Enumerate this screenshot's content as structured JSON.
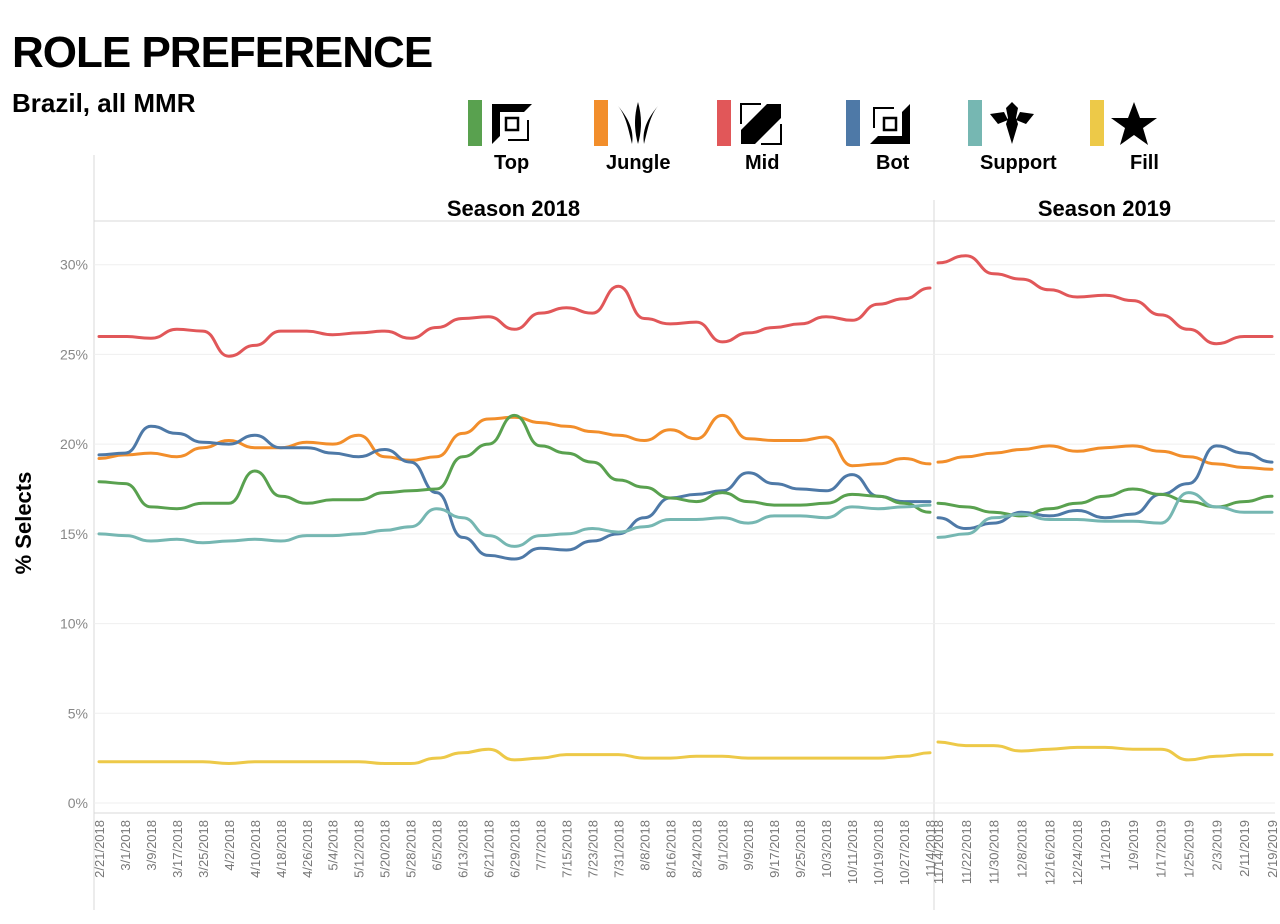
{
  "title": "ROLE PREFERENCE",
  "subtitle": "Brazil, all MMR",
  "legend": [
    {
      "label": "Top",
      "color": "#59a14f",
      "icon": "top-lane-icon"
    },
    {
      "label": "Jungle",
      "color": "#f28e2b",
      "icon": "jungle-icon"
    },
    {
      "label": "Mid",
      "color": "#e15759",
      "icon": "mid-lane-icon"
    },
    {
      "label": "Bot",
      "color": "#4e79a7",
      "icon": "bot-lane-icon"
    },
    {
      "label": "Support",
      "color": "#76b7b2",
      "icon": "support-icon"
    },
    {
      "label": "Fill",
      "color": "#edc948",
      "icon": "star-icon"
    }
  ],
  "chart_data": {
    "type": "line",
    "ylabel": "% Selects",
    "ylim": [
      0,
      32
    ],
    "yticks": [
      "0%",
      "5%",
      "10%",
      "15%",
      "20%",
      "25%",
      "30%"
    ],
    "grid": true,
    "panels": [
      {
        "name": "Season 2018",
        "x": [
          "2/21/2018",
          "3/1/2018",
          "3/9/2018",
          "3/17/2018",
          "3/25/2018",
          "4/2/2018",
          "4/10/2018",
          "4/18/2018",
          "4/26/2018",
          "5/4/2018",
          "5/12/2018",
          "5/20/2018",
          "5/28/2018",
          "6/5/2018",
          "6/13/2018",
          "6/21/2018",
          "6/29/2018",
          "7/7/2018",
          "7/15/2018",
          "7/23/2018",
          "7/31/2018",
          "8/8/2018",
          "8/16/2018",
          "8/24/2018",
          "9/1/2018",
          "9/9/2018",
          "9/17/2018",
          "9/25/2018",
          "10/3/2018",
          "10/11/2018",
          "10/19/2018",
          "10/27/2018",
          "11/4/2018"
        ],
        "series": [
          {
            "name": "Mid",
            "values": [
              26.0,
              26.0,
              25.9,
              26.4,
              26.3,
              24.9,
              25.5,
              26.3,
              26.3,
              26.1,
              26.2,
              26.3,
              25.9,
              26.5,
              27.0,
              27.1,
              26.4,
              27.3,
              27.6,
              27.3,
              28.8,
              27.0,
              26.7,
              26.8,
              25.7,
              26.2,
              26.5,
              26.7,
              27.1,
              26.9,
              27.8,
              28.1,
              28.7
            ]
          },
          {
            "name": "Jungle",
            "values": [
              19.2,
              19.4,
              19.5,
              19.3,
              19.8,
              20.2,
              19.8,
              19.8,
              20.1,
              20.0,
              20.5,
              19.3,
              19.1,
              19.3,
              20.6,
              21.4,
              21.5,
              21.2,
              21.0,
              20.7,
              20.5,
              20.2,
              20.8,
              20.3,
              21.6,
              20.3,
              20.2,
              20.2,
              20.4,
              18.8,
              18.9,
              19.2,
              18.9
            ]
          },
          {
            "name": "Bot",
            "values": [
              19.4,
              19.5,
              21.0,
              20.6,
              20.1,
              20.0,
              20.5,
              19.8,
              19.8,
              19.5,
              19.3,
              19.7,
              19.0,
              17.3,
              14.8,
              13.8,
              13.6,
              14.2,
              14.1,
              14.6,
              15.0,
              15.9,
              17.0,
              17.2,
              17.4,
              18.4,
              17.8,
              17.5,
              17.4,
              18.3,
              17.1,
              16.8,
              16.8
            ]
          },
          {
            "name": "Top",
            "values": [
              17.9,
              17.8,
              16.5,
              16.4,
              16.7,
              16.7,
              18.5,
              17.1,
              16.7,
              16.9,
              16.9,
              17.3,
              17.4,
              17.5,
              19.3,
              20.0,
              21.6,
              19.9,
              19.5,
              19.0,
              18.0,
              17.6,
              17.0,
              16.8,
              17.3,
              16.8,
              16.6,
              16.6,
              16.7,
              17.2,
              17.1,
              16.7,
              16.2
            ]
          },
          {
            "name": "Support",
            "values": [
              15.0,
              14.9,
              14.6,
              14.7,
              14.5,
              14.6,
              14.7,
              14.6,
              14.9,
              14.9,
              15.0,
              15.2,
              15.4,
              16.4,
              15.9,
              14.9,
              14.3,
              14.9,
              15.0,
              15.3,
              15.1,
              15.4,
              15.8,
              15.8,
              15.9,
              15.6,
              16.0,
              16.0,
              15.9,
              16.5,
              16.4,
              16.5,
              16.6
            ]
          },
          {
            "name": "Fill",
            "values": [
              2.3,
              2.3,
              2.3,
              2.3,
              2.3,
              2.2,
              2.3,
              2.3,
              2.3,
              2.3,
              2.3,
              2.2,
              2.2,
              2.5,
              2.8,
              3.0,
              2.4,
              2.5,
              2.7,
              2.7,
              2.7,
              2.5,
              2.5,
              2.6,
              2.6,
              2.5,
              2.5,
              2.5,
              2.5,
              2.5,
              2.5,
              2.6,
              2.8
            ]
          }
        ]
      },
      {
        "name": "Season 2019",
        "x": [
          "11/14/2018",
          "11/22/2018",
          "11/30/2018",
          "12/8/2018",
          "12/16/2018",
          "12/24/2018",
          "1/1/2019",
          "1/9/2019",
          "1/17/2019",
          "1/25/2019",
          "2/3/2019",
          "2/11/2019",
          "2/19/2019"
        ],
        "series": [
          {
            "name": "Mid",
            "values": [
              30.1,
              30.5,
              29.5,
              29.2,
              28.6,
              28.2,
              28.3,
              28.0,
              27.2,
              26.4,
              25.6,
              26.0,
              26.0
            ]
          },
          {
            "name": "Jungle",
            "values": [
              19.0,
              19.3,
              19.5,
              19.7,
              19.9,
              19.6,
              19.8,
              19.9,
              19.6,
              19.3,
              18.9,
              18.7,
              18.6
            ]
          },
          {
            "name": "Bot",
            "values": [
              15.9,
              15.3,
              15.6,
              16.2,
              16.0,
              16.3,
              15.9,
              16.1,
              17.2,
              17.8,
              19.9,
              19.5,
              19.0
            ]
          },
          {
            "name": "Top",
            "values": [
              16.7,
              16.5,
              16.2,
              16.0,
              16.4,
              16.7,
              17.1,
              17.5,
              17.2,
              16.8,
              16.5,
              16.8,
              17.1
            ]
          },
          {
            "name": "Support",
            "values": [
              14.8,
              15.0,
              15.9,
              16.1,
              15.8,
              15.8,
              15.7,
              15.7,
              15.6,
              17.3,
              16.5,
              16.2,
              16.2
            ]
          },
          {
            "name": "Fill",
            "values": [
              3.4,
              3.2,
              3.2,
              2.9,
              3.0,
              3.1,
              3.1,
              3.0,
              3.0,
              2.4,
              2.6,
              2.7,
              2.7
            ]
          }
        ]
      }
    ]
  }
}
